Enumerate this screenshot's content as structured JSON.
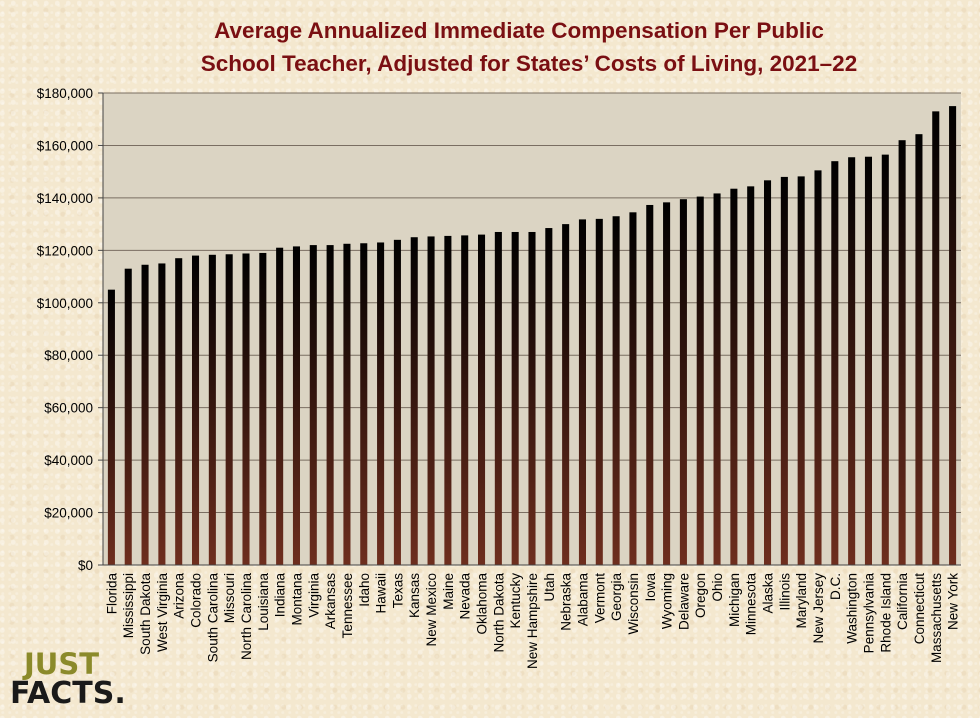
{
  "chart_data": {
    "type": "bar",
    "title": "Average Annualized Immediate Compensation Per Public School Teacher, Adjusted for States’ Costs of Living, 2021–22",
    "title_lines": [
      "Average Annualized Immediate Compensation Per Public",
      "School Teacher, Adjusted for States’ Costs of Living, 2021–22"
    ],
    "xlabel": "",
    "ylabel": "",
    "ylim": [
      0,
      180000
    ],
    "yticks": [
      0,
      20000,
      40000,
      60000,
      80000,
      100000,
      120000,
      140000,
      160000,
      180000
    ],
    "ytick_labels": [
      "$0",
      "$20,000",
      "$40,000",
      "$60,000",
      "$80,000",
      "$100,000",
      "$120,000",
      "$140,000",
      "$160,000",
      "$180,000"
    ],
    "grid": true,
    "legend": "none",
    "categories": [
      "Florida",
      "Mississippi",
      "South Dakota",
      "West Virginia",
      "Arizona",
      "Colorado",
      "South Carolina",
      "Missouri",
      "North Carolina",
      "Louisiana",
      "Indiana",
      "Montana",
      "Virginia",
      "Arkansas",
      "Tennessee",
      "Idaho",
      "Hawaii",
      "Texas",
      "Kansas",
      "New Mexico",
      "Maine",
      "Nevada",
      "Oklahoma",
      "North Dakota",
      "Kentucky",
      "New Hampshire",
      "Utah",
      "Nebraska",
      "Alabama",
      "Vermont",
      "Georgia",
      "Wisconsin",
      "Iowa",
      "Wyoming",
      "Delaware",
      "Oregon",
      "Ohio",
      "Michigan",
      "Minnesota",
      "Alaska",
      "Illinois",
      "Maryland",
      "New Jersey",
      "D.C.",
      "Washington",
      "Pennsylvania",
      "Rhode Island",
      "California",
      "Connecticut",
      "Massachusetts",
      "New York"
    ],
    "values": [
      105000,
      113000,
      114500,
      115000,
      117000,
      118000,
      118300,
      118500,
      118800,
      119000,
      121000,
      121500,
      122000,
      122000,
      122500,
      122700,
      123000,
      124000,
      125000,
      125300,
      125500,
      125700,
      126000,
      127000,
      127000,
      127000,
      128500,
      130000,
      131800,
      132000,
      133000,
      134500,
      137300,
      138300,
      139500,
      140500,
      141700,
      143500,
      144400,
      146700,
      148000,
      148200,
      150500,
      154000,
      155500,
      155700,
      156500,
      162000,
      164300,
      173000,
      175000
    ]
  },
  "colors": {
    "title": "#7a0f12",
    "plot_background": "#dbd4c3",
    "bar_top": "#000000",
    "bar_bottom": "#6e2e1e",
    "gridline": "#7a6e62",
    "axis": "#444444",
    "page_background": "#f4e8cf"
  },
  "logo": {
    "line1": "JUST",
    "line2": "FACTS."
  }
}
